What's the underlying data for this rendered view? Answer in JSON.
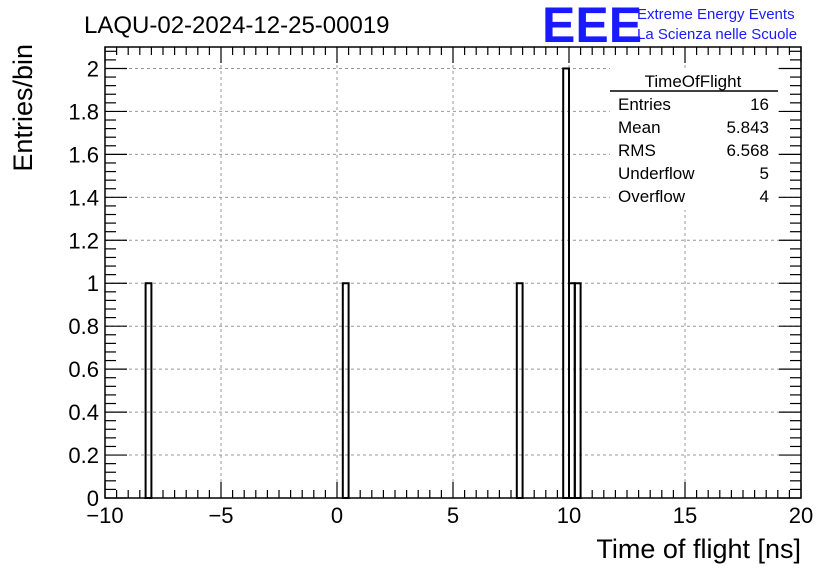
{
  "header": {
    "title": "LAQU-02-2024-12-25-00019",
    "logo_text": "EEE",
    "logo_line1": "Extreme Energy Events",
    "logo_line2": "La Scienza nelle Scuole",
    "logo_color": "#1a1aff"
  },
  "chart_data": {
    "type": "bar",
    "subtype": "histogram",
    "xlabel": "Time of flight [ns]",
    "ylabel": "Entries/bin",
    "xlim": [
      -10,
      20
    ],
    "ylim": [
      0,
      2.1
    ],
    "grid": true,
    "bin_width": 0.25,
    "x_ticks": [
      -10,
      -5,
      0,
      5,
      10,
      15,
      20
    ],
    "x_tick_labels": [
      "−10",
      "−5",
      "0",
      "5",
      "10",
      "15",
      "20"
    ],
    "y_ticks": [
      0,
      0.2,
      0.4,
      0.6,
      0.8,
      1,
      1.2,
      1.4,
      1.6,
      1.8,
      2
    ],
    "y_tick_labels": [
      "0",
      "0.2",
      "0.4",
      "0.6",
      "0.8",
      "1",
      "1.2",
      "1.4",
      "1.6",
      "1.8",
      "2"
    ],
    "bins": [
      {
        "x": -8.25,
        "value": 1
      },
      {
        "x": 0.25,
        "value": 1
      },
      {
        "x": 7.75,
        "value": 1
      },
      {
        "x": 9.75,
        "value": 2
      },
      {
        "x": 10.0,
        "value": 1
      },
      {
        "x": 10.25,
        "value": 1
      }
    ],
    "stats": {
      "title": "TimeOfFlight",
      "rows": [
        {
          "label": "Entries",
          "value": "16"
        },
        {
          "label": "Mean",
          "value": "5.843"
        },
        {
          "label": "RMS",
          "value": "6.568"
        },
        {
          "label": "Underflow",
          "value": "5"
        },
        {
          "label": "Overflow",
          "value": "4"
        }
      ]
    }
  }
}
